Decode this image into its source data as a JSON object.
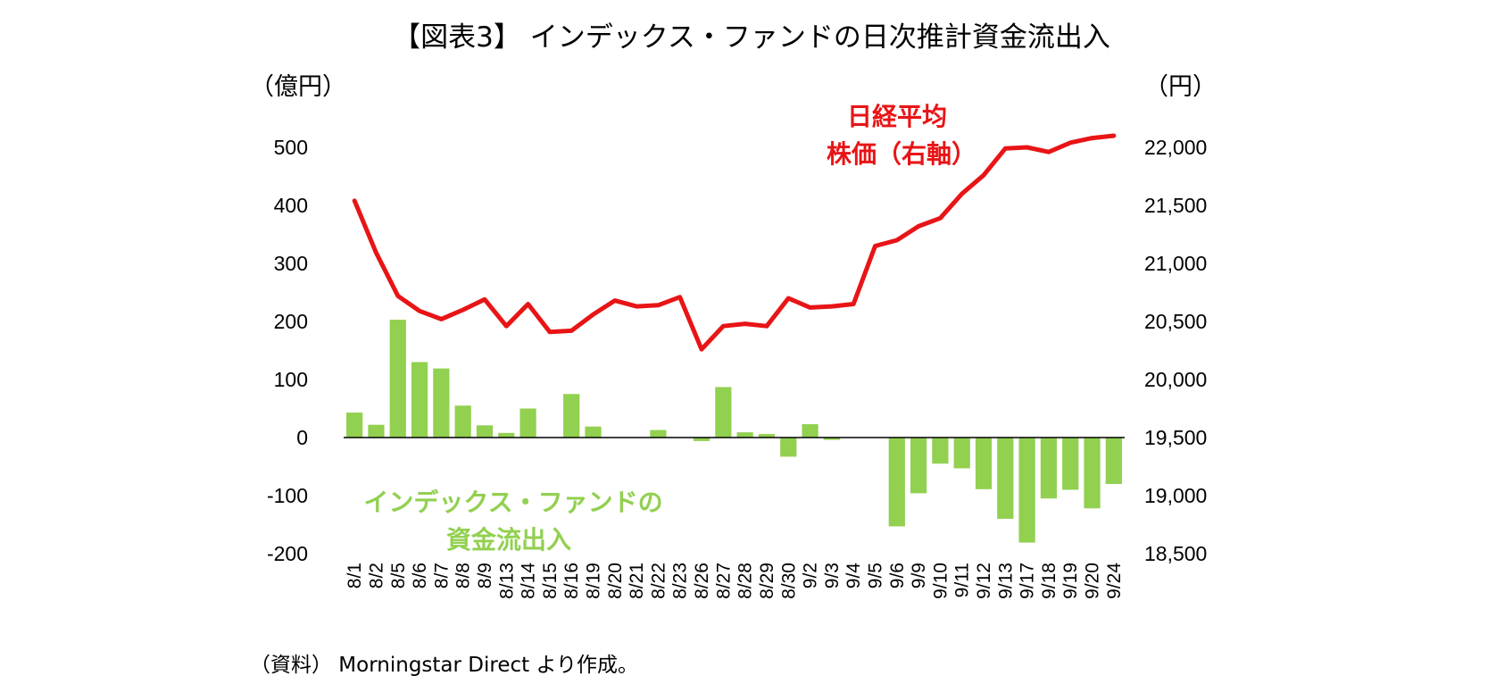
{
  "title": "【図表3】 インデックス・ファンドの日次推計資金流出入",
  "left_axis_unit": "（億円）",
  "right_axis_unit": "（円）",
  "source": "（資料） Morningstar Direct より作成。",
  "annotations": {
    "line_label_1": "日経平均",
    "line_label_2": "株価（右軸）",
    "bar_label_1": "インデックス・ファンドの",
    "bar_label_2": "資金流出入"
  },
  "colors": {
    "bar": "#92d050",
    "line": "#e81416",
    "axis": "#000000"
  },
  "chart_data": {
    "type": "bar+line",
    "categories": [
      "8/1",
      "8/2",
      "8/5",
      "8/6",
      "8/7",
      "8/8",
      "8/9",
      "8/13",
      "8/14",
      "8/15",
      "8/16",
      "8/19",
      "8/20",
      "8/21",
      "8/22",
      "8/23",
      "8/26",
      "8/27",
      "8/28",
      "8/29",
      "8/30",
      "9/2",
      "9/3",
      "9/4",
      "9/5",
      "9/6",
      "9/9",
      "9/10",
      "9/11",
      "9/12",
      "9/13",
      "9/17",
      "9/18",
      "9/19",
      "9/20",
      "9/24"
    ],
    "left_axis": {
      "min": -200,
      "max": 500,
      "ticks": [
        500,
        400,
        300,
        200,
        100,
        0,
        -100,
        -200
      ],
      "tick_labels": [
        "500",
        "400",
        "300",
        "200",
        "100",
        "0",
        "-100",
        "-200"
      ]
    },
    "right_axis": {
      "min": 18500,
      "max": 22000,
      "ticks": [
        22000,
        21500,
        21000,
        20500,
        20000,
        19500,
        19000,
        18500
      ],
      "tick_labels": [
        "22,000",
        "21,500",
        "21,000",
        "20,500",
        "20,000",
        "19,500",
        "19,000",
        "18,500"
      ]
    },
    "series": [
      {
        "name": "インデックス・ファンドの資金流出入",
        "type": "bar",
        "axis": "left",
        "values": [
          43,
          22,
          203,
          130,
          119,
          55,
          21,
          8,
          50,
          0,
          75,
          19,
          0,
          0,
          13,
          0,
          -6,
          87,
          9,
          6,
          -33,
          23,
          -4,
          0,
          0,
          -153,
          -96,
          -45,
          -53,
          -89,
          -140,
          -181,
          -105,
          -90,
          -122,
          -80
        ]
      },
      {
        "name": "日経平均株価（右軸）",
        "type": "line",
        "axis": "right",
        "values": [
          21540,
          21090,
          20720,
          20590,
          20520,
          20600,
          20690,
          20460,
          20650,
          20410,
          20420,
          20560,
          20680,
          20630,
          20640,
          20710,
          20260,
          20460,
          20480,
          20460,
          20700,
          20620,
          20630,
          20650,
          21150,
          21200,
          21320,
          21390,
          21600,
          21760,
          21990,
          22000,
          21960,
          22040,
          22080,
          22100
        ]
      }
    ]
  }
}
